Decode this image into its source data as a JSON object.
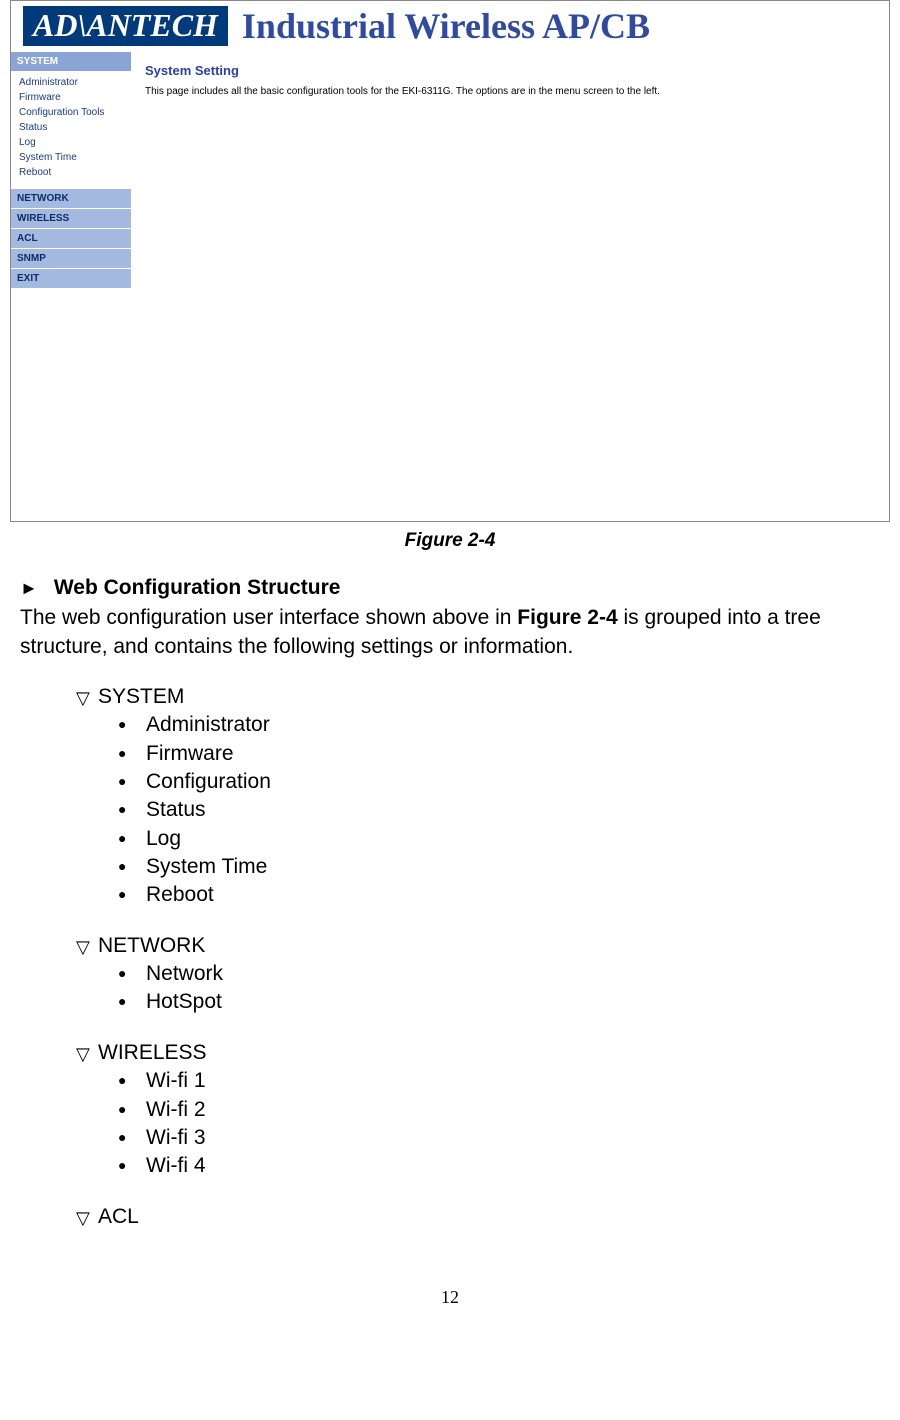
{
  "screenshot": {
    "logo_text": "AD\\ANTECH",
    "banner_title": "Industrial Wireless AP/CB",
    "sidebar": {
      "sections": [
        {
          "label": "SYSTEM",
          "active": true,
          "items": [
            "Administrator",
            "Firmware",
            "Configuration Tools",
            "Status",
            "Log",
            "System Time",
            "Reboot"
          ]
        },
        {
          "label": "NETWORK",
          "active": false,
          "items": []
        },
        {
          "label": "WIRELESS",
          "active": false,
          "items": []
        },
        {
          "label": "ACL",
          "active": false,
          "items": []
        },
        {
          "label": "SNMP",
          "active": false,
          "items": []
        },
        {
          "label": "EXIT",
          "active": false,
          "items": []
        }
      ]
    },
    "panel": {
      "title": "System Setting",
      "text": "This page includes all the basic configuration tools for the EKI-6311G. The options are in the menu screen to the left."
    },
    "colors": {
      "logo_bg": "#003a7a",
      "banner_text": "#2f4aa0",
      "nav_bg": "#a3b9df",
      "nav_active_bg": "#8aa4d6",
      "nav_text": "#102a6a",
      "nav_link": "#1a3a8a",
      "panel_title": "#2a3fa8"
    }
  },
  "figure_caption": "Figure 2-4",
  "section": {
    "arrow": "►",
    "heading": "Web Configuration Structure",
    "paragraph_pre": "The web configuration user interface shown above in ",
    "paragraph_bold": "Figure 2-4",
    "paragraph_post": " is grouped into a tree structure, and contains the following settings or information."
  },
  "tree": [
    {
      "title": "SYSTEM",
      "items": [
        "Administrator",
        "Firmware",
        "Configuration",
        "Status",
        "Log",
        "System Time",
        "Reboot"
      ]
    },
    {
      "title": "NETWORK",
      "items": [
        "Network",
        "HotSpot"
      ]
    },
    {
      "title": "WIRELESS",
      "items": [
        "Wi-fi 1",
        "Wi-fi 2",
        "Wi-fi 3",
        "Wi-fi 4"
      ]
    },
    {
      "title": "ACL",
      "items": []
    }
  ],
  "markers": {
    "triangle": "▽",
    "bullet": "●"
  },
  "page_number": "12"
}
